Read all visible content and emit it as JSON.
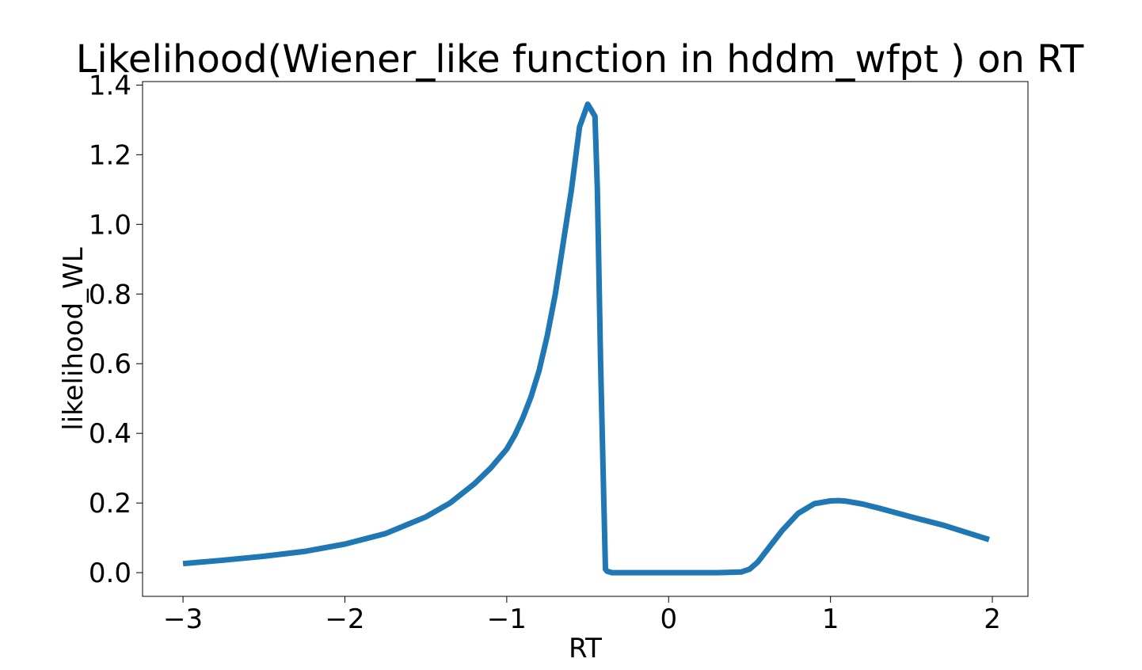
{
  "chart_data": {
    "type": "line",
    "title": "Likelihood(Wiener_like function in hddm_wfpt ) on RT",
    "xlabel": "RT",
    "ylabel": "likelihood_WL",
    "xlim": [
      -3.25,
      2.22
    ],
    "ylim": [
      -0.068,
      1.41
    ],
    "xticks": [
      -3,
      -2,
      -1,
      0,
      1,
      2
    ],
    "xtick_labels": [
      "−3",
      "−2",
      "−1",
      "0",
      "1",
      "2"
    ],
    "yticks": [
      0.0,
      0.2,
      0.4,
      0.6,
      0.8,
      1.0,
      1.2,
      1.4
    ],
    "ytick_labels": [
      "0.0",
      "0.2",
      "0.4",
      "0.6",
      "0.8",
      "1.0",
      "1.2",
      "1.4"
    ],
    "grid": false,
    "series": [
      {
        "color": "#1f77b4",
        "x": [
          -3.0,
          -2.75,
          -2.5,
          -2.25,
          -2.0,
          -1.75,
          -1.5,
          -1.35,
          -1.2,
          -1.1,
          -1.0,
          -0.95,
          -0.9,
          -0.85,
          -0.8,
          -0.75,
          -0.7,
          -0.65,
          -0.6,
          -0.55,
          -0.5,
          -0.48,
          -0.455,
          -0.44,
          -0.42,
          -0.4,
          -0.39,
          -0.38,
          -0.35,
          0.0,
          0.3,
          0.45,
          0.5,
          0.55,
          0.6,
          0.7,
          0.8,
          0.9,
          1.0,
          1.05,
          1.1,
          1.2,
          1.3,
          1.5,
          1.7,
          1.98
        ],
        "y": [
          0.026,
          0.036,
          0.047,
          0.061,
          0.082,
          0.112,
          0.16,
          0.2,
          0.255,
          0.3,
          0.355,
          0.395,
          0.445,
          0.505,
          0.58,
          0.68,
          0.8,
          0.95,
          1.1,
          1.28,
          1.345,
          1.33,
          1.31,
          1.1,
          0.6,
          0.2,
          0.01,
          0.004,
          0.0,
          0.0,
          0.0,
          0.002,
          0.01,
          0.03,
          0.06,
          0.12,
          0.17,
          0.198,
          0.206,
          0.207,
          0.205,
          0.197,
          0.185,
          0.16,
          0.136,
          0.095
        ]
      }
    ]
  }
}
